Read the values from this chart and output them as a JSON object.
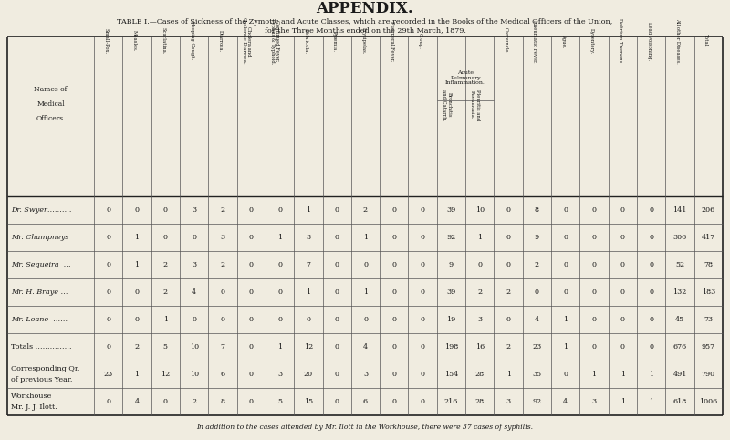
{
  "title": "APPENDIX.",
  "subtitle1": "TABLE I.—Cases of Sickness of the Zymotic and Acute Classes, which are recorded in the Books of the Medical Officers of the Union,",
  "subtitle2": "for the Three Months ended on the 29th March, 1879.",
  "footnote": "In addition to the cases attended by Mr. Ilott in the Workhouse, there were 37 cases of syphilis.",
  "col_headers_rotated": [
    "Small-Pox.",
    "Measles.",
    "Scarlatina.",
    "Hooping-Cough.",
    "Diarrœa.",
    "Cholera and\nCholeraic-Diarrœa.",
    "Continued Fever,\nTyphus & Typhoid.",
    "Febricula.",
    "Pyæmia.",
    "Erysipelas.",
    "Puerperal Fever.",
    "Croup.",
    "Bronchitis\nand Catarrh.",
    "Pleuritis and\nPneumonia.",
    "Carbuncle.",
    "Rheumatic Fever.",
    "Ague.",
    "Dysentery.",
    "Delirium Tremens.",
    "Lead Poisoning.",
    "All other Diseases.",
    "Total."
  ],
  "acute_pulmonary_label": "Acute\nPulmonary\nInflammation.",
  "names_label": [
    "Names of",
    "Medical",
    "Officers."
  ],
  "row_labels": [
    "Dr. Swyer……….",
    "Mr. Champneys",
    "Mr. Sequeira  …",
    "Mr. H. Braye …",
    "Mr. Loane  ……",
    "Totals ……………",
    "Corresponding Qr.\nof previous Year.",
    "Workhouse\nMr. J. J. Ilott."
  ],
  "data": [
    [
      0,
      0,
      0,
      3,
      2,
      0,
      0,
      1,
      0,
      2,
      0,
      0,
      39,
      10,
      0,
      8,
      0,
      0,
      0,
      0,
      141,
      206
    ],
    [
      0,
      1,
      0,
      0,
      3,
      0,
      1,
      3,
      0,
      1,
      0,
      0,
      92,
      1,
      0,
      9,
      0,
      0,
      0,
      0,
      306,
      417
    ],
    [
      0,
      1,
      2,
      3,
      2,
      0,
      0,
      7,
      0,
      0,
      0,
      0,
      9,
      0,
      0,
      2,
      0,
      0,
      0,
      0,
      52,
      78
    ],
    [
      0,
      0,
      2,
      4,
      0,
      0,
      0,
      1,
      0,
      1,
      0,
      0,
      39,
      2,
      2,
      0,
      0,
      0,
      0,
      0,
      132,
      183
    ],
    [
      0,
      0,
      1,
      0,
      0,
      0,
      0,
      0,
      0,
      0,
      0,
      0,
      19,
      3,
      0,
      4,
      1,
      0,
      0,
      0,
      45,
      73
    ],
    [
      0,
      2,
      5,
      10,
      7,
      0,
      1,
      12,
      0,
      4,
      0,
      0,
      198,
      16,
      2,
      23,
      1,
      0,
      0,
      0,
      676,
      957
    ],
    [
      23,
      1,
      12,
      10,
      6,
      0,
      3,
      20,
      0,
      3,
      0,
      0,
      154,
      28,
      1,
      35,
      0,
      1,
      1,
      1,
      491,
      790
    ],
    [
      0,
      4,
      0,
      2,
      8,
      0,
      5,
      15,
      0,
      6,
      0,
      0,
      216,
      28,
      3,
      92,
      4,
      3,
      1,
      1,
      618,
      1006
    ]
  ],
  "bg_color": "#f0ece0",
  "text_color": "#1a1a1a",
  "line_color": "#555555",
  "thick_line_color": "#222222"
}
